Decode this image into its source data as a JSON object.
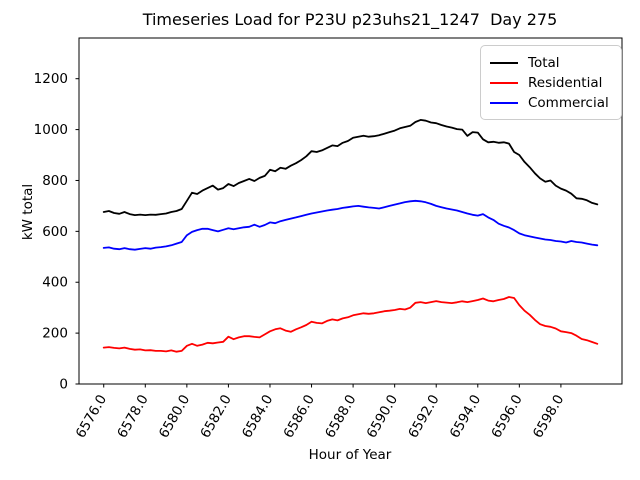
{
  "title": "Timeseries Load for P23U p23uhs21_1247  Day 275",
  "chart_data": {
    "type": "line",
    "title": "Timeseries Load for P23U p23uhs21_1247  Day 275",
    "xlabel": "Hour of Year",
    "ylabel": "kW total",
    "xlim": [
      6574.81,
      6600.94
    ],
    "ylim": [
      0,
      1360
    ],
    "grid": false,
    "legend_position": "upper right",
    "xticks": [
      6576,
      6578,
      6580,
      6582,
      6584,
      6586,
      6588,
      6590,
      6592,
      6594,
      6596,
      6598
    ],
    "xtick_labels": [
      "6576.0",
      "6578.0",
      "6580.0",
      "6582.0",
      "6584.0",
      "6586.0",
      "6588.0",
      "6590.0",
      "6592.0",
      "6594.0",
      "6596.0",
      "6598.0"
    ],
    "xtick_rotation": 60,
    "yticks": [
      0,
      200,
      400,
      600,
      800,
      1000,
      1200
    ],
    "ytick_labels": [
      "0",
      "200",
      "400",
      "600",
      "800",
      "1000",
      "1200"
    ],
    "x_start": 6576.0,
    "x_step": 0.25,
    "series": [
      {
        "name": "Total",
        "color": "#000000",
        "values": [
          676,
          680,
          672,
          669,
          676,
          668,
          664,
          666,
          664,
          666,
          665,
          668,
          670,
          676,
          680,
          688,
          720,
          752,
          747,
          760,
          770,
          780,
          764,
          770,
          786,
          778,
          790,
          798,
          806,
          798,
          810,
          818,
          842,
          836,
          850,
          846,
          858,
          868,
          880,
          895,
          915,
          912,
          918,
          928,
          938,
          935,
          948,
          955,
          968,
          972,
          976,
          972,
          974,
          978,
          984,
          990,
          996,
          1005,
          1010,
          1015,
          1030,
          1038,
          1035,
          1028,
          1025,
          1018,
          1012,
          1008,
          1002,
          1000,
          975,
          990,
          988,
          962,
          950,
          952,
          948,
          950,
          945,
          912,
          900,
          873,
          852,
          828,
          808,
          795,
          800,
          780,
          768,
          760,
          748,
          730,
          728,
          722,
          712,
          706
        ]
      },
      {
        "name": "Residential",
        "color": "#ff0000",
        "values": [
          143,
          145,
          142,
          140,
          143,
          138,
          135,
          136,
          132,
          133,
          130,
          130,
          128,
          132,
          127,
          130,
          150,
          158,
          150,
          155,
          162,
          160,
          163,
          166,
          186,
          176,
          183,
          188,
          188,
          185,
          183,
          195,
          207,
          215,
          219,
          210,
          205,
          215,
          223,
          232,
          245,
          240,
          238,
          248,
          254,
          250,
          258,
          262,
          270,
          274,
          278,
          276,
          278,
          282,
          286,
          288,
          291,
          295,
          293,
          300,
          319,
          322,
          318,
          322,
          326,
          322,
          320,
          318,
          321,
          325,
          322,
          326,
          330,
          336,
          328,
          325,
          330,
          334,
          342,
          338,
          310,
          288,
          272,
          252,
          235,
          228,
          225,
          218,
          207,
          204,
          200,
          190,
          177,
          172,
          165,
          158
        ]
      },
      {
        "name": "Commercial",
        "color": "#0000ff",
        "values": [
          535,
          537,
          532,
          530,
          534,
          530,
          528,
          531,
          534,
          532,
          536,
          538,
          541,
          545,
          552,
          558,
          585,
          598,
          605,
          610,
          610,
          605,
          600,
          606,
          612,
          608,
          612,
          616,
          618,
          626,
          618,
          625,
          635,
          632,
          640,
          645,
          650,
          655,
          660,
          665,
          670,
          674,
          678,
          682,
          685,
          688,
          692,
          695,
          698,
          700,
          697,
          694,
          692,
          690,
          695,
          700,
          705,
          710,
          715,
          718,
          720,
          718,
          714,
          708,
          700,
          695,
          690,
          686,
          682,
          676,
          670,
          665,
          662,
          668,
          655,
          645,
          630,
          622,
          615,
          605,
          592,
          585,
          580,
          576,
          572,
          568,
          566,
          562,
          560,
          556,
          562,
          558,
          556,
          552,
          548,
          545
        ]
      }
    ]
  }
}
